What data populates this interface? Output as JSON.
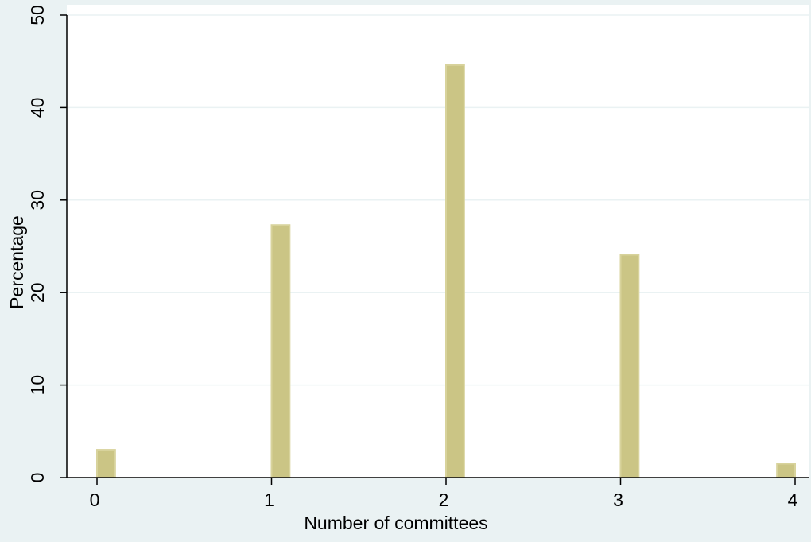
{
  "chart_data": {
    "type": "bar",
    "title": "",
    "xlabel": "Number of committees",
    "ylabel": "Percentage",
    "xlim": [
      0,
      4
    ],
    "ylim": [
      0,
      50
    ],
    "x_ticks": [
      0,
      1,
      2,
      3,
      4
    ],
    "y_ticks": [
      0,
      10,
      20,
      30,
      40,
      50
    ],
    "grid": true,
    "bar_width": 0.2,
    "bars": [
      {
        "x": 0,
        "value": 3.0
      },
      {
        "x": 1,
        "value": 27.3
      },
      {
        "x": 2,
        "value": 44.6
      },
      {
        "x": 3,
        "value": 24.1
      },
      {
        "x": 4,
        "value": 1.5
      }
    ]
  },
  "colors": {
    "background": "#eaf2f3",
    "plot_background": "#ffffff",
    "bar_fill": "#cbc585",
    "bar_stroke": "#d8d39c",
    "grid": "#eaf2f3",
    "axis": "#000000"
  }
}
